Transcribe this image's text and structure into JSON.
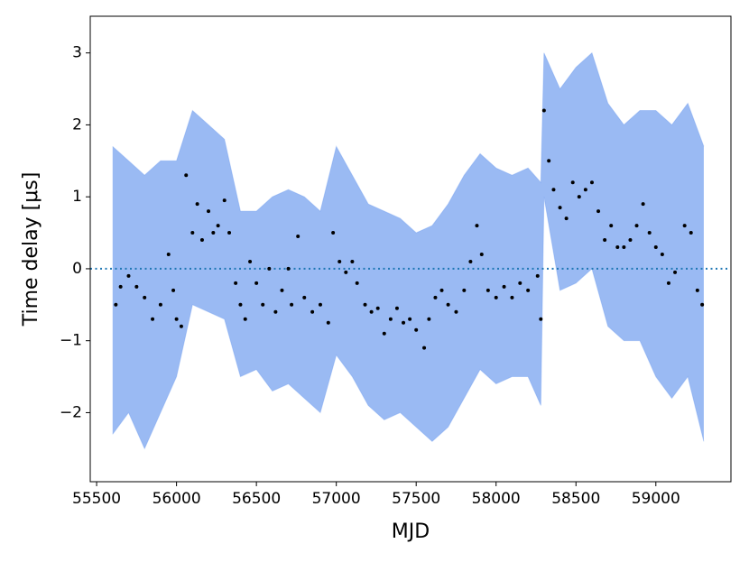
{
  "chart_data": {
    "type": "scatter",
    "xlabel": "MJD",
    "ylabel": "Time delay [μs]",
    "xlim": [
      55460,
      59470
    ],
    "ylim": [
      -2.96,
      3.51
    ],
    "xticks": [
      55500,
      56000,
      56500,
      57000,
      57500,
      58000,
      58500,
      59000
    ],
    "yticks": [
      {
        "value": -2,
        "label": "−2"
      },
      {
        "value": -1,
        "label": "−1"
      },
      0,
      1,
      2,
      3
    ],
    "hline": 0,
    "hline_color": "#1f77b4",
    "color": "#000000",
    "band_color": "#6495ed",
    "band": {
      "x": [
        55600,
        55700,
        55800,
        55900,
        56000,
        56100,
        56200,
        56300,
        56400,
        56500,
        56600,
        56700,
        56800,
        56900,
        57000,
        57100,
        57200,
        57300,
        57400,
        57500,
        57600,
        57700,
        57800,
        57900,
        58000,
        58100,
        58200,
        58280,
        58300,
        58400,
        58500,
        58600,
        58700,
        58800,
        58900,
        59000,
        59100,
        59200,
        59300
      ],
      "upper": [
        1.7,
        1.5,
        1.3,
        1.5,
        1.5,
        2.2,
        2.0,
        1.8,
        0.8,
        0.8,
        1.0,
        1.1,
        1.0,
        0.8,
        1.7,
        1.3,
        0.9,
        0.8,
        0.7,
        0.5,
        0.6,
        0.9,
        1.3,
        1.6,
        1.4,
        1.3,
        1.4,
        1.2,
        3.0,
        2.5,
        2.8,
        3.0,
        2.3,
        2.0,
        2.2,
        2.2,
        2.0,
        2.3,
        1.7
      ],
      "lower": [
        -2.3,
        -2.0,
        -2.5,
        -2.0,
        -1.5,
        -0.5,
        -0.6,
        -0.7,
        -1.5,
        -1.4,
        -1.7,
        -1.6,
        -1.8,
        -2.0,
        -1.2,
        -1.5,
        -1.9,
        -2.1,
        -2.0,
        -2.2,
        -2.4,
        -2.2,
        -1.8,
        -1.4,
        -1.6,
        -1.5,
        -1.5,
        -1.9,
        1.0,
        -0.3,
        -0.2,
        0.0,
        -0.8,
        -1.0,
        -1.0,
        -1.5,
        -1.8,
        -1.5,
        -2.4
      ]
    },
    "x": [
      55620,
      55650,
      55700,
      55750,
      55800,
      55850,
      55900,
      55950,
      55980,
      56000,
      56030,
      56060,
      56100,
      56130,
      56160,
      56200,
      56230,
      56260,
      56300,
      56330,
      56370,
      56400,
      56430,
      56460,
      56500,
      56540,
      56580,
      56620,
      56660,
      56700,
      56720,
      56760,
      56800,
      56850,
      56900,
      56950,
      56980,
      57020,
      57060,
      57100,
      57130,
      57180,
      57220,
      57260,
      57300,
      57340,
      57380,
      57420,
      57460,
      57500,
      57550,
      57580,
      57620,
      57660,
      57700,
      57750,
      57800,
      57840,
      57880,
      57910,
      57950,
      58000,
      58050,
      58100,
      58150,
      58200,
      58260,
      58280,
      58300,
      58330,
      58360,
      58400,
      58440,
      58480,
      58520,
      58560,
      58600,
      58640,
      58680,
      58720,
      58760,
      58800,
      58840,
      58880,
      58920,
      58960,
      59000,
      59040,
      59080,
      59120,
      59180,
      59220,
      59260,
      59290
    ],
    "values": [
      -0.5,
      -0.25,
      -0.1,
      -0.25,
      -0.4,
      -0.7,
      -0.5,
      0.2,
      -0.3,
      -0.7,
      -0.8,
      1.3,
      0.5,
      0.9,
      0.4,
      0.8,
      0.5,
      0.6,
      0.95,
      0.5,
      -0.2,
      -0.5,
      -0.7,
      0.1,
      -0.2,
      -0.5,
      0.0,
      -0.6,
      -0.3,
      0.0,
      -0.5,
      0.45,
      -0.4,
      -0.6,
      -0.5,
      -0.75,
      0.5,
      0.1,
      -0.05,
      0.1,
      -0.2,
      -0.5,
      -0.6,
      -0.55,
      -0.9,
      -0.7,
      -0.55,
      -0.75,
      -0.7,
      -0.85,
      -1.1,
      -0.7,
      -0.4,
      -0.3,
      -0.5,
      -0.6,
      -0.3,
      0.1,
      0.6,
      0.2,
      -0.3,
      -0.4,
      -0.25,
      -0.4,
      -0.2,
      -0.3,
      -0.1,
      -0.7,
      2.2,
      1.5,
      1.1,
      0.85,
      0.7,
      1.2,
      1.0,
      1.1,
      1.2,
      0.8,
      0.4,
      0.6,
      0.3,
      0.3,
      0.4,
      0.6,
      0.9,
      0.5,
      0.3,
      0.2,
      -0.2,
      -0.05,
      0.6,
      0.5,
      -0.3,
      -0.5
    ]
  }
}
